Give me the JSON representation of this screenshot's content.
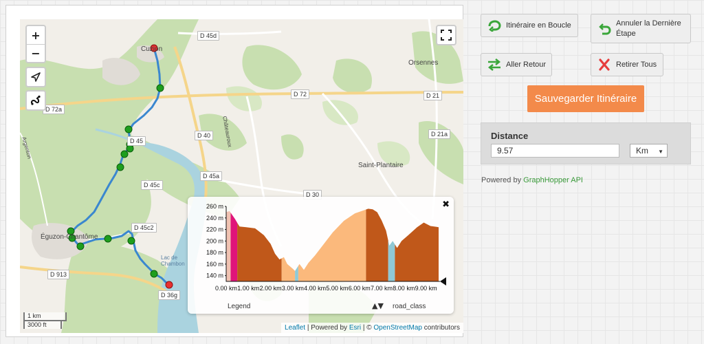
{
  "map": {
    "zoom_in": "+",
    "zoom_out": "−",
    "fullscreen_label": "⛶",
    "places": [
      {
        "key": "cuzion",
        "name": "Cuzion"
      },
      {
        "key": "orsennes",
        "name": "Orsennes"
      },
      {
        "key": "saint_plantaire",
        "name": "Saint-Plantaire"
      },
      {
        "key": "eguzon",
        "name": "Éguzon-Chantôme"
      },
      {
        "key": "lac",
        "name": "Lac de Chambon"
      },
      {
        "key": "chateauroux",
        "name": "Châteauroux"
      },
      {
        "key": "argenton",
        "name": "Argenton"
      }
    ],
    "roads": [
      "D 45d",
      "D 72",
      "D 21",
      "D 72a",
      "D 40",
      "D 21a",
      "D 45",
      "D 45a",
      "D 45c",
      "D 30",
      "D 45c2",
      "D 913",
      "D 36g"
    ],
    "scale": {
      "metric": "1 km",
      "imperial": "3000 ft"
    },
    "attribution": {
      "leaflet": "Leaflet",
      "sep1": " | Powered by ",
      "esri": "Esri",
      "sep2": " | © ",
      "osm": "OpenStreetMap",
      "tail": " contributors"
    },
    "colors": {
      "route": "#3a87cf",
      "waypoint": "#1e9e1e",
      "endpoint": "#e83030",
      "water": "#aad3df",
      "forest": "#c8dfb0"
    }
  },
  "elevation": {
    "close": "✖",
    "y_ticks": [
      "260 m",
      "240 m",
      "220 m",
      "200 m",
      "180 m",
      "160 m",
      "140 m"
    ],
    "x_ticks": [
      "0.00 km",
      "1.00 km",
      "2.00 km",
      "3.00 km",
      "4.00 km",
      "5.00 km",
      "6.00 km",
      "7.00 km",
      "8.00 km",
      "9.00 km"
    ],
    "legend": "Legend",
    "sort": "▲▼",
    "road_class": "road_class",
    "colors": {
      "primary": "#c0581a",
      "secondary": "#fbb97c",
      "track": "#e0147a",
      "residential": "#8fc9d6",
      "start": "#f1c2b2"
    }
  },
  "buttons": {
    "loop": "Itinéraire en Boucle",
    "undo_line1": "Annuler la Dernière",
    "undo_line2": "Étape",
    "roundtrip": "Aller Retour",
    "clear": "Retirer Tous",
    "save": "Sauvegarder Itinéraire"
  },
  "distance": {
    "title": "Distance",
    "value": "9.57",
    "unit": "Km"
  },
  "powered": {
    "prefix": "Powered by ",
    "brand": "GraphHopper API"
  }
}
